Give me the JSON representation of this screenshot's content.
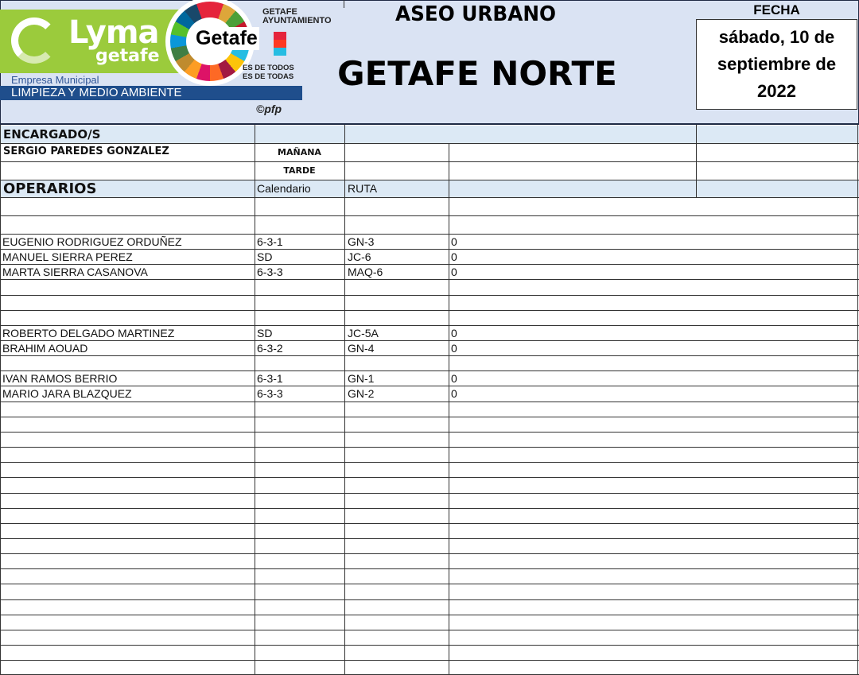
{
  "header": {
    "logo_lyma": "Lyma getafe",
    "logo_getafe": "Getafe",
    "logo_ayuntamiento": "GETAFE AYUNTAMIENTO",
    "logo_slogan_1": "ES DE TODOS",
    "logo_slogan_2": "ES DE TODAS",
    "empresa": "Empresa Municipal",
    "empresa_nombre": "LIMPIEZA Y MEDIO AMBIENTE",
    "copyright": "©pfp",
    "title": "ASEO URBANO",
    "zone": "GETAFE NORTE",
    "fecha_label": "FECHA",
    "fecha_value": [
      "sábado, 10 de",
      "septiembre de",
      "2022"
    ]
  },
  "encargados": {
    "label": "ENCARGADO/S",
    "name": "SERGIO PAREDES GONZALEZ",
    "turno_manana": "MAÑANA",
    "turno_tarde": "TARDE"
  },
  "operarios": {
    "label": "OPERARIOS",
    "col_calendario": "Calendario",
    "col_ruta": "RUTA",
    "rows": [
      {
        "name": "",
        "cal": "",
        "ruta": "",
        "val": ""
      },
      {
        "name": "",
        "cal": "",
        "ruta": "",
        "val": ""
      },
      {
        "name": "EUGENIO RODRIGUEZ ORDUÑEZ",
        "cal": "6-3-1",
        "ruta": "GN-3",
        "val": "0"
      },
      {
        "name": "MANUEL SIERRA PEREZ",
        "cal": "SD",
        "ruta": "JC-6",
        "val": "0"
      },
      {
        "name": "MARTA SIERRA CASANOVA",
        "cal": "6-3-3",
        "ruta": "MAQ-6",
        "val": "0"
      },
      {
        "name": "",
        "cal": "",
        "ruta": "",
        "val": ""
      },
      {
        "name": "",
        "cal": "",
        "ruta": "",
        "val": ""
      },
      {
        "name": "",
        "cal": "",
        "ruta": "",
        "val": ""
      },
      {
        "name": "ROBERTO DELGADO MARTINEZ",
        "cal": "SD",
        "ruta": "JC-5A",
        "val": "0"
      },
      {
        "name": "BRAHIM AOUAD",
        "cal": "6-3-2",
        "ruta": "GN-4",
        "val": "0"
      },
      {
        "name": "",
        "cal": "",
        "ruta": "",
        "val": ""
      },
      {
        "name": "IVAN RAMOS BERRIO",
        "cal": "6-3-1",
        "ruta": "GN-1",
        "val": "0"
      },
      {
        "name": "MARIO JARA BLAZQUEZ",
        "cal": "6-3-3",
        "ruta": "GN-2",
        "val": "0"
      }
    ]
  }
}
